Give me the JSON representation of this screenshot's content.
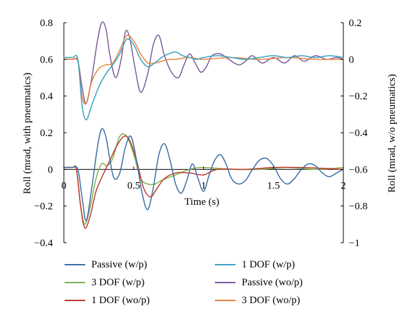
{
  "chart_data": {
    "type": "line",
    "title": "",
    "xlabel": "Time (s)",
    "ylabel_left": "Roll (mrad, with pneumatics)",
    "ylabel_right": "Roll (mrad, w/o pneumatics)",
    "xlim": [
      0,
      2
    ],
    "ylim_left": [
      -0.4,
      0.8
    ],
    "ylim_right": [
      -1,
      0.2
    ],
    "x_ticks": [
      0,
      0.5,
      1,
      1.5,
      2
    ],
    "x_tick_labels": [
      "0",
      "0.5",
      "1",
      "1.5",
      "2"
    ],
    "y_left_ticks": [
      -0.4,
      -0.2,
      0,
      0.2,
      0.4,
      0.6,
      0.8
    ],
    "y_left_tick_labels": [
      "−0.4",
      "−0.2",
      "0",
      "0.2",
      "0.4",
      "0.6",
      "0.8"
    ],
    "y_right_ticks": [
      -1,
      -0.8,
      -0.6,
      -0.4,
      -0.2,
      0,
      0.2
    ],
    "y_right_tick_labels": [
      "−1",
      "−0.8",
      "−0.6",
      "−0.4",
      "−0.2",
      "0",
      "0.2"
    ],
    "grid": false,
    "legend_position": "bottom",
    "series": [
      {
        "name": "Passive (w/p)",
        "axis": "left",
        "color": "#3a6ea5",
        "x": [
          0,
          0.06,
          0.1,
          0.13,
          0.16,
          0.2,
          0.24,
          0.27,
          0.3,
          0.33,
          0.36,
          0.4,
          0.44,
          0.48,
          0.52,
          0.56,
          0.6,
          0.64,
          0.68,
          0.72,
          0.76,
          0.8,
          0.84,
          0.88,
          0.92,
          0.96,
          1.0,
          1.04,
          1.08,
          1.12,
          1.16,
          1.2,
          1.25,
          1.3,
          1.35,
          1.4,
          1.45,
          1.5,
          1.55,
          1.6,
          1.65,
          1.7,
          1.75,
          1.8,
          1.85,
          1.9,
          1.95,
          2.0
        ],
        "y": [
          0.01,
          0.01,
          0.0,
          -0.15,
          -0.28,
          -0.1,
          0.12,
          0.22,
          0.18,
          0.05,
          -0.05,
          -0.02,
          0.12,
          0.18,
          0.05,
          -0.13,
          -0.22,
          -0.1,
          0.08,
          0.14,
          0.05,
          -0.08,
          -0.13,
          -0.06,
          0.03,
          -0.05,
          -0.12,
          -0.03,
          0.05,
          0.08,
          0.03,
          -0.05,
          -0.08,
          -0.06,
          0.0,
          0.05,
          0.06,
          0.02,
          -0.05,
          -0.08,
          -0.05,
          0.0,
          0.03,
          0.02,
          -0.02,
          -0.04,
          -0.02,
          0.0
        ]
      },
      {
        "name": "3 DOF (w/p)",
        "axis": "left",
        "color": "#7fb04a",
        "x": [
          0,
          0.06,
          0.09,
          0.12,
          0.15,
          0.19,
          0.23,
          0.27,
          0.31,
          0.35,
          0.4,
          0.45,
          0.5,
          0.55,
          0.6,
          0.65,
          0.7,
          0.8,
          0.9,
          1.0,
          1.2,
          1.4,
          1.6,
          1.8,
          2.0
        ],
        "y": [
          0.01,
          0.01,
          0.0,
          -0.2,
          -0.3,
          -0.2,
          -0.05,
          0.03,
          0.02,
          0.06,
          0.18,
          0.18,
          0.08,
          -0.05,
          -0.08,
          -0.08,
          -0.06,
          -0.03,
          0.0,
          0.01,
          0.0,
          0.0,
          0.01,
          0.0,
          0.01
        ]
      },
      {
        "name": "1 DOF (wo/p)",
        "axis": "left",
        "color": "#c0392b",
        "x": [
          0,
          0.06,
          0.09,
          0.12,
          0.15,
          0.19,
          0.23,
          0.28,
          0.33,
          0.38,
          0.43,
          0.47,
          0.52,
          0.57,
          0.62,
          0.67,
          0.72,
          0.8,
          0.9,
          1.0,
          1.1,
          1.3,
          1.5,
          1.7,
          2.0
        ],
        "y": [
          0.01,
          0.01,
          0.0,
          -0.2,
          -0.32,
          -0.25,
          -0.12,
          -0.03,
          0.05,
          0.13,
          0.18,
          0.16,
          0.05,
          -0.1,
          -0.15,
          -0.1,
          -0.05,
          -0.02,
          -0.02,
          -0.03,
          0.0,
          0.0,
          0.01,
          0.01,
          0.0
        ]
      },
      {
        "name": "1 DOF (w/p)",
        "axis": "left",
        "color": "#3aa0bf",
        "x": [
          0,
          0.06,
          0.1,
          0.13,
          0.16,
          0.2,
          0.25,
          0.3,
          0.35,
          0.4,
          0.45,
          0.5,
          0.55,
          0.6,
          0.65,
          0.7,
          0.75,
          0.8,
          0.85,
          0.9,
          0.95,
          1.0,
          1.1,
          1.2,
          1.3,
          1.4,
          1.5,
          1.6,
          1.7,
          1.8,
          1.9,
          2.0
        ],
        "y": [
          0.61,
          0.61,
          0.6,
          0.35,
          0.27,
          0.35,
          0.45,
          0.52,
          0.57,
          0.63,
          0.71,
          0.68,
          0.6,
          0.56,
          0.58,
          0.61,
          0.63,
          0.64,
          0.62,
          0.61,
          0.6,
          0.61,
          0.62,
          0.61,
          0.6,
          0.61,
          0.62,
          0.61,
          0.62,
          0.61,
          0.62,
          0.61
        ]
      },
      {
        "name": "Passive (wo/p)",
        "axis": "right",
        "color": "#7e5b9e",
        "x": [
          0,
          0.06,
          0.1,
          0.13,
          0.16,
          0.2,
          0.24,
          0.27,
          0.3,
          0.33,
          0.37,
          0.41,
          0.44,
          0.47,
          0.51,
          0.55,
          0.6,
          0.64,
          0.68,
          0.72,
          0.77,
          0.82,
          0.86,
          0.9,
          0.94,
          0.98,
          1.02,
          1.06,
          1.12,
          1.18,
          1.25,
          1.3,
          1.35,
          1.42,
          1.5,
          1.58,
          1.65,
          1.72,
          1.8,
          1.88,
          1.95,
          2.0
        ],
        "y": [
          0.0,
          0.0,
          -0.01,
          -0.15,
          -0.24,
          -0.1,
          0.1,
          0.2,
          0.17,
          0.02,
          -0.1,
          0.0,
          0.15,
          0.12,
          -0.05,
          -0.18,
          -0.08,
          0.08,
          0.13,
          0.02,
          -0.07,
          -0.1,
          -0.03,
          0.03,
          -0.02,
          -0.07,
          -0.04,
          0.02,
          0.03,
          0.0,
          -0.03,
          -0.01,
          0.02,
          -0.02,
          0.01,
          -0.02,
          0.02,
          -0.01,
          0.02,
          0.0,
          0.01,
          0.0
        ]
      },
      {
        "name": "3 DOF (wo/p)",
        "axis": "right",
        "color": "#e8843c",
        "x": [
          0,
          0.06,
          0.1,
          0.13,
          0.16,
          0.2,
          0.25,
          0.3,
          0.35,
          0.4,
          0.45,
          0.5,
          0.55,
          0.6,
          0.65,
          0.7,
          0.75,
          0.8,
          0.9,
          1.0,
          1.2,
          1.4,
          1.6,
          1.8,
          2.0
        ],
        "y": [
          0.0,
          0.0,
          -0.01,
          -0.2,
          -0.24,
          -0.12,
          -0.05,
          -0.03,
          -0.02,
          0.05,
          0.13,
          0.1,
          0.03,
          -0.02,
          -0.02,
          -0.01,
          0.0,
          0.0,
          0.01,
          0.0,
          0.01,
          0.0,
          0.01,
          0.0,
          0.0
        ]
      }
    ]
  }
}
